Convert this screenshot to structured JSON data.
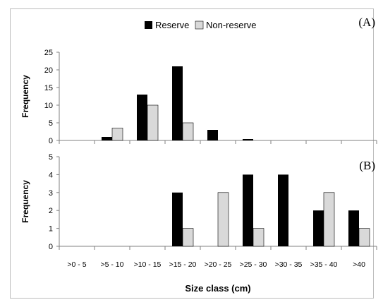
{
  "chart_data": [
    {
      "type": "bar",
      "panel_label": "(A)",
      "ylabel": "Frequency",
      "ylim": [
        0,
        25
      ],
      "yticks": [
        0,
        5,
        10,
        15,
        20,
        25
      ],
      "categories": [
        ">0 - 5",
        ">5 - 10",
        ">10 - 15",
        ">15 - 20",
        ">20 - 25",
        ">25 - 30",
        ">30 - 35",
        ">35 - 40",
        ">40"
      ],
      "series": [
        {
          "name": "Reserve",
          "color": "#000000",
          "values": [
            0,
            1,
            13,
            21,
            3,
            0.4,
            0,
            0,
            0
          ]
        },
        {
          "name": "Non-reserve",
          "color": "#d9d9d9",
          "values": [
            0,
            3.5,
            10,
            5,
            0,
            0,
            0,
            0,
            0
          ]
        }
      ],
      "legend": "top-center",
      "grid": false
    },
    {
      "type": "bar",
      "panel_label": "(B)",
      "ylabel": "Frequency",
      "xlabel": "Size class (cm)",
      "ylim": [
        0,
        5
      ],
      "yticks": [
        0,
        1,
        2,
        3,
        4,
        5
      ],
      "categories": [
        ">0 - 5",
        ">5 - 10",
        ">10 - 15",
        ">15 - 20",
        ">20 - 25",
        ">25 - 30",
        ">30 - 35",
        ">35 - 40",
        ">40"
      ],
      "series": [
        {
          "name": "Reserve",
          "color": "#000000",
          "values": [
            0,
            0,
            0,
            3,
            0,
            4,
            4,
            2,
            2
          ]
        },
        {
          "name": "Non-reserve",
          "color": "#d9d9d9",
          "values": [
            0,
            0,
            0,
            1,
            3,
            1,
            0,
            3,
            1
          ]
        }
      ],
      "grid": false
    }
  ]
}
